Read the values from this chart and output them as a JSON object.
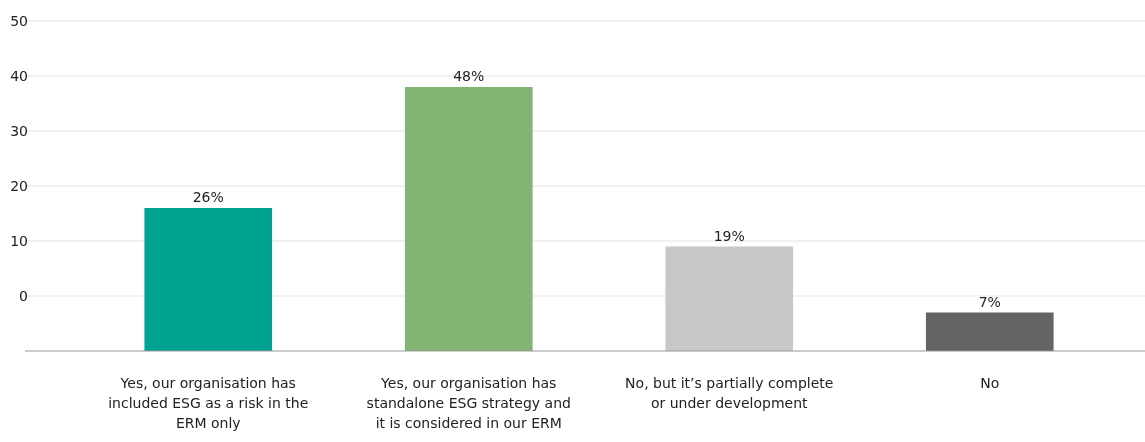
{
  "chart_data": {
    "type": "bar",
    "categories": [
      "Yes, our organisation has included ESG as a risk in the ERM only",
      "Yes, our organisation has standalone ESG strategy and it is considered in our ERM",
      "No, but it’s partially complete or under development",
      "No"
    ],
    "values": [
      26,
      48,
      19,
      7
    ],
    "colors": [
      "#00a391",
      "#82b474",
      "#c8c8c8",
      "#646464"
    ],
    "base": [
      -10,
      -10,
      -10,
      -10
    ],
    "ylim": [
      -10,
      50
    ],
    "yticks": [
      0,
      10,
      20,
      30,
      40,
      50
    ],
    "grid": "y",
    "value_labels": [
      "26%",
      "48%",
      "19%",
      "7%"
    ]
  }
}
